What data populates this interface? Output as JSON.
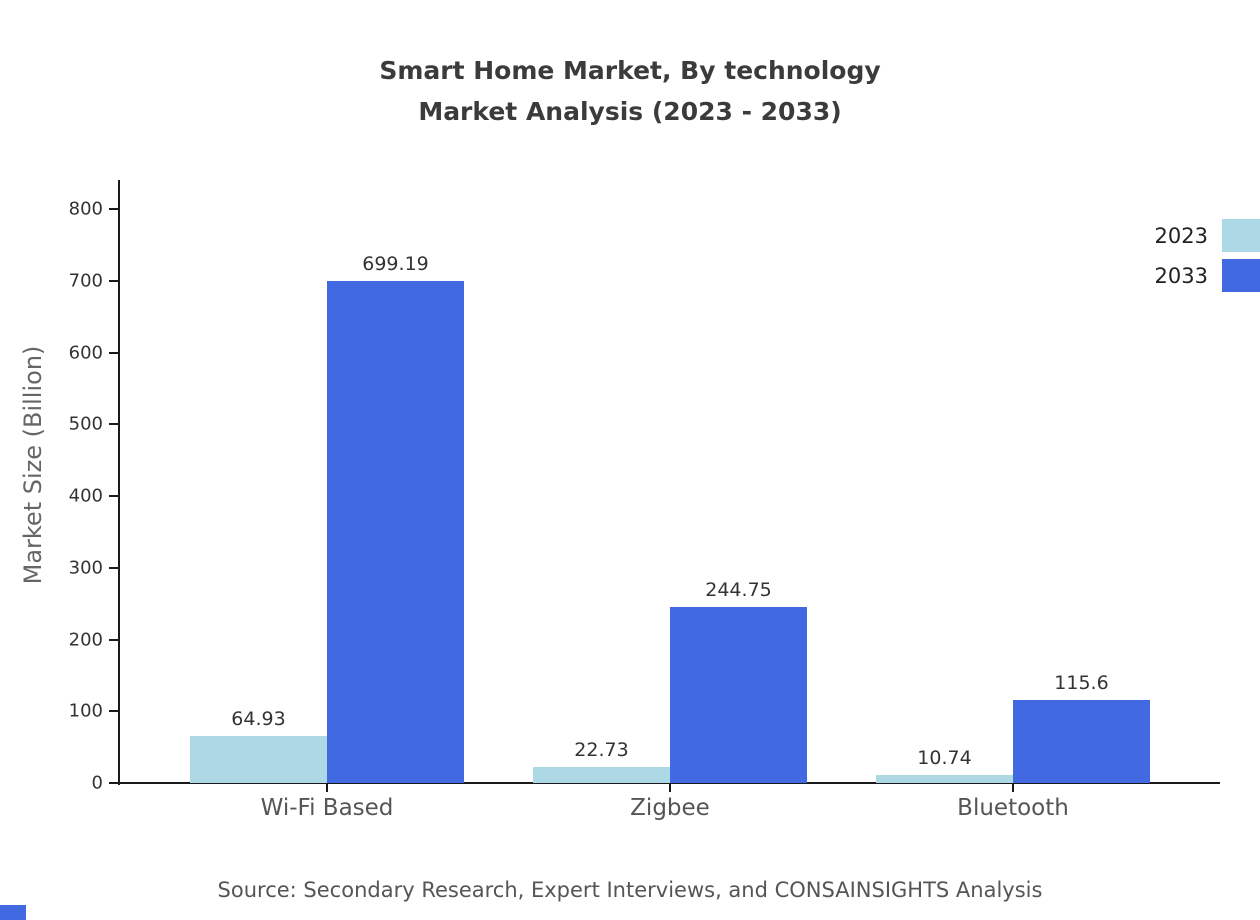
{
  "chart_data": {
    "type": "bar",
    "title": "Smart Home Market, By technology",
    "subtitle": "Market Analysis (2023 - 2033)",
    "categories": [
      "Wi-Fi Based",
      "Zigbee",
      "Bluetooth"
    ],
    "series": [
      {
        "name": "2023",
        "color": "#ADD8E6",
        "values": [
          64.93,
          22.73,
          10.74
        ]
      },
      {
        "name": "2033",
        "color": "#4169E1",
        "values": [
          699.19,
          244.75,
          115.6
        ]
      }
    ],
    "xlabel": "",
    "ylabel": "Market Size (Billion)",
    "ylim": [
      0,
      800
    ],
    "yticks": [
      0,
      100,
      200,
      300,
      400,
      500,
      600,
      700,
      800
    ],
    "grid": false,
    "legend_position": "top-right"
  },
  "source_text": "Source: Secondary Research, Expert Interviews, and CONSAINSIGHTS Analysis",
  "colors": {
    "axis": "#1a1a1a",
    "title": "#3b3b3b",
    "series_2023": "#ADD8E6",
    "series_2033": "#4169E1"
  }
}
